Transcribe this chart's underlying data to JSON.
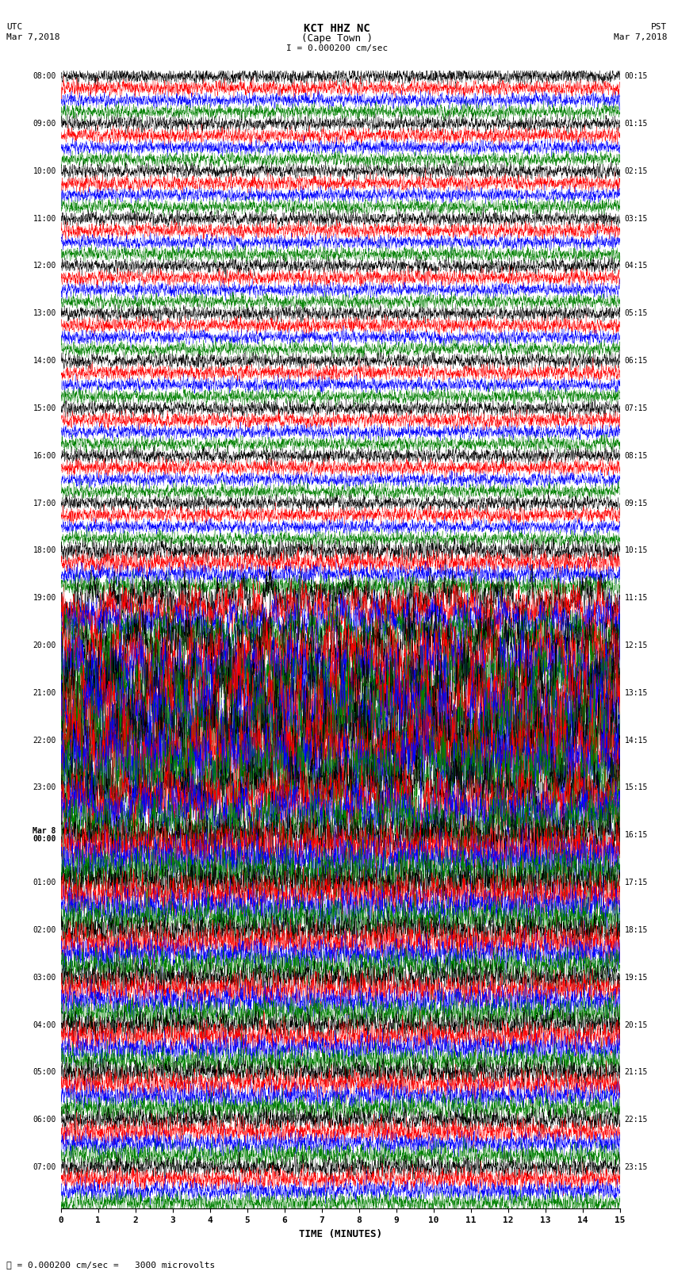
{
  "title_line1": "KCT HHZ NC",
  "title_line2": "(Cape Town )",
  "scale_label": "I = 0.000200 cm/sec",
  "left_header": "UTC\nMar 7,2018",
  "right_header": "PST\nMar 7,2018",
  "bottom_label": "TIME (MINUTES)",
  "bottom_note": "= 0.000200 cm/sec =   3000 microvolts",
  "utc_times": [
    "08:00",
    "09:00",
    "10:00",
    "11:00",
    "12:00",
    "13:00",
    "14:00",
    "15:00",
    "16:00",
    "17:00",
    "18:00",
    "19:00",
    "20:00",
    "21:00",
    "22:00",
    "23:00",
    "Mar 8\n00:00",
    "01:00",
    "02:00",
    "03:00",
    "04:00",
    "05:00",
    "06:00",
    "07:00"
  ],
  "pst_times": [
    "00:15",
    "01:15",
    "02:15",
    "03:15",
    "04:15",
    "05:15",
    "06:15",
    "07:15",
    "08:15",
    "09:15",
    "10:15",
    "11:15",
    "12:15",
    "13:15",
    "14:15",
    "15:15",
    "16:15",
    "17:15",
    "18:15",
    "19:15",
    "20:15",
    "21:15",
    "22:15",
    "23:15"
  ],
  "colors": [
    "black",
    "red",
    "blue",
    "green"
  ],
  "bg_color": "white",
  "n_rows": 24,
  "traces_per_row": 4,
  "x_ticks": [
    0,
    1,
    2,
    3,
    4,
    5,
    6,
    7,
    8,
    9,
    10,
    11,
    12,
    13,
    14,
    15
  ],
  "xlim": [
    0,
    15
  ],
  "noise_seed": 42,
  "row_amplitudes": [
    0.28,
    0.28,
    0.28,
    0.28,
    0.28,
    0.28,
    0.28,
    0.28,
    0.28,
    0.28,
    0.4,
    0.9,
    1.4,
    1.8,
    1.6,
    1.2,
    0.9,
    0.75,
    0.65,
    0.6,
    0.55,
    0.5,
    0.45,
    0.4
  ]
}
